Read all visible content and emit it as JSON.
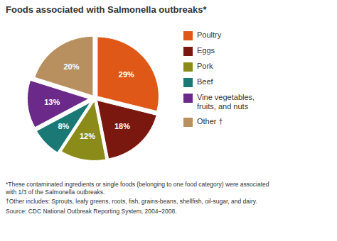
{
  "chart_data": {
    "type": "pie",
    "title": "Foods associated with Salmonella outbreaks*",
    "categories": [
      "Poultry",
      "Eggs",
      "Pork",
      "Beef",
      "Vine vegetables,\nfruits, and nuts",
      "Other †"
    ],
    "values": [
      29,
      18,
      12,
      8,
      13,
      20
    ],
    "value_labels": [
      "29%",
      "18%",
      "12%",
      "8%",
      "13%",
      "20%"
    ],
    "colors": [
      "#E05818",
      "#7A1810",
      "#8B8B1A",
      "#1A7875",
      "#6B2A8A",
      "#B89060"
    ],
    "data_labels": true,
    "legend": "right",
    "annotations": [
      "*These contaminated ingredients or single foods (belonging to one food category) were associated\nwith 1/3 of the Salmonella outbreaks.",
      "†Other includes: Sprouts, leafy greens, roots, fish, grains-beans, shellfish, oil-sugar, and dairy.",
      "Source: CDC National Outbreak Reporting System, 2004–2008."
    ]
  }
}
